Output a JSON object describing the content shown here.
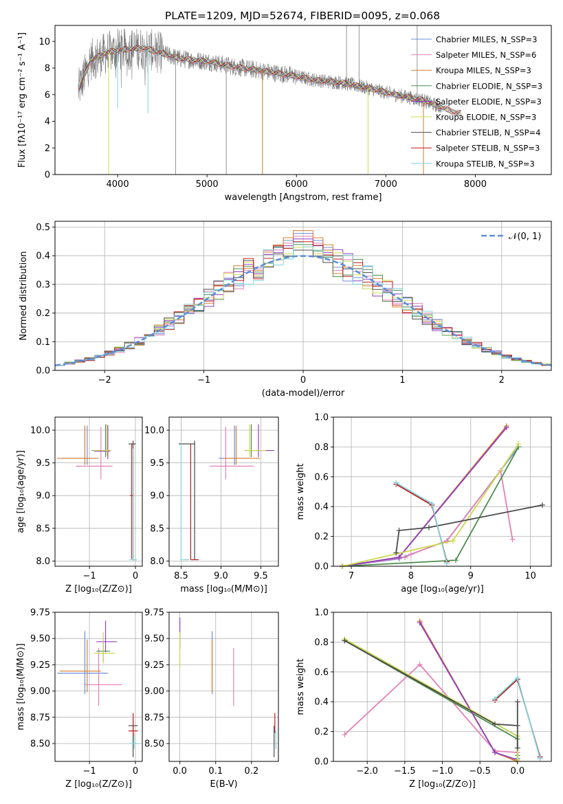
{
  "figure": {
    "title": "PLATE=1209, MJD=52674, FIBERID=0095, z=0.068"
  },
  "colors": {
    "series": [
      "#6a8fd9",
      "#e37fb6",
      "#d87c2a",
      "#4d8c4d",
      "#8f3fc0",
      "#ccd84a",
      "#4a4a4a",
      "#c01818",
      "#7fd4dc"
    ],
    "gray": "#7a7a7a",
    "normal": "#5b8fd8"
  },
  "chart_data": [
    {
      "id": "spectrum",
      "type": "line",
      "title": "PLATE=1209, MJD=52674, FIBERID=0095, z=0.068",
      "xlabel": "wavelength [Angstrom, rest frame]",
      "ylabel": "Flux [fλ10⁻¹⁷ erg cm⁻² s⁻¹ A⁻¹]",
      "xlim": [
        3300,
        8850
      ],
      "ylim": [
        0,
        11.2
      ],
      "xticks": [
        "4000",
        "5000",
        "6000",
        "7000",
        "8000"
      ],
      "yticks": [
        "0",
        "2",
        "4",
        "6",
        "8",
        "10"
      ],
      "grid": false,
      "legend_position": "top-right",
      "legend": [
        "Chabrier MILES, N_SSP=3",
        "Salpeter MILES, N_SSP=6",
        "Kroupa MILES, N_SSP=3",
        "Chabrier ELODIE, N_SSP=3",
        "Salpeter ELODIE, N_SSP=3",
        "Kroupa ELODIE, N_SSP=3",
        "Chabrier STELIB, N_SSP=4",
        "Salpeter STELIB, N_SSP=3",
        "Kroupa STELIB, N_SSP=3"
      ],
      "continuum": {
        "x": [
          3560,
          3700,
          3900,
          4100,
          4300,
          4500,
          4700,
          5000,
          5300,
          5600,
          5900,
          6200,
          6500,
          6800,
          7100,
          7400,
          7600,
          7800
        ],
        "y": [
          6.3,
          8.6,
          9.2,
          9.4,
          9.5,
          9.1,
          8.7,
          8.5,
          8.1,
          7.8,
          7.5,
          7.1,
          6.9,
          6.5,
          6.0,
          5.6,
          5.1,
          4.6
        ]
      },
      "model_dips": [
        {
          "x": 3900,
          "y": 0.0
        },
        {
          "x": 4000,
          "y": 5.0
        },
        {
          "x": 4340,
          "y": 4.6
        },
        {
          "x": 5620,
          "y": 0.0
        },
        {
          "x": 6800,
          "y": 0.0
        },
        {
          "x": 7420,
          "y": 0.0
        }
      ]
    },
    {
      "id": "residuals",
      "type": "line",
      "xlabel": "(data-model)/error",
      "ylabel": "Normed distribution",
      "xlim": [
        -2.5,
        2.5
      ],
      "ylim": [
        0,
        0.52
      ],
      "xticks": [
        "−2",
        "−1",
        "0",
        "1",
        "2"
      ],
      "yticks": [
        "0.0",
        "0.1",
        "0.2",
        "0.3",
        "0.4",
        "0.5"
      ],
      "grid": true,
      "legend_position": "top-right",
      "legend": [
        "𝒩(0, 1)"
      ],
      "normal_curve": {
        "mean": 0,
        "sigma": 1
      },
      "histogram_bin_width": 0.1,
      "histogram_peaks": [
        0.49,
        0.48,
        0.5,
        0.45,
        0.47,
        0.44,
        0.43,
        0.46,
        0.42
      ]
    },
    {
      "id": "z-age",
      "type": "scatter",
      "xlabel": "Z [log₁₀(Z/Z⊙)]",
      "ylabel": "age  [log₁₀(age/yr)]",
      "xlim": [
        -1.75,
        0.15
      ],
      "ylim": [
        7.92,
        10.2
      ],
      "xticks": [
        "−1",
        "0"
      ],
      "yticks": [
        "8.0",
        "8.5",
        "9.0",
        "9.5",
        "10.0"
      ],
      "grid": true,
      "errorbars": [
        {
          "series": 0,
          "x": -1.05,
          "y": 9.57,
          "xerr": [
            0.55,
            0.2
          ],
          "yerr": [
            0.1,
            0.5
          ]
        },
        {
          "series": 1,
          "x": -0.75,
          "y": 9.45,
          "xerr": [
            0.55,
            0.25
          ],
          "yerr": [
            0.2,
            0.6
          ]
        },
        {
          "series": 2,
          "x": -1.1,
          "y": 9.57,
          "xerr": [
            0.6,
            0.3
          ],
          "yerr": [
            0.1,
            0.5
          ]
        },
        {
          "series": 3,
          "x": -0.65,
          "y": 9.69,
          "xerr": [
            0.3,
            0.1
          ],
          "yerr": [
            0.1,
            0.4
          ]
        },
        {
          "series": 4,
          "x": -0.6,
          "y": 9.68,
          "xerr": [
            0.3,
            0.05
          ],
          "yerr": [
            0.12,
            0.4
          ]
        },
        {
          "series": 5,
          "x": -0.62,
          "y": 9.69,
          "xerr": [
            0.3,
            0.1
          ],
          "yerr": [
            0.08,
            0.4
          ]
        },
        {
          "series": 6,
          "x": -0.05,
          "y": 9.79,
          "xerr": [
            0.1,
            0.06
          ],
          "yerr": [
            1.77,
            0.05
          ]
        },
        {
          "series": 7,
          "x": -0.08,
          "y": 9.0,
          "xerr": [
            0.04,
            0.04
          ],
          "yerr": [
            0.97,
            0.8
          ]
        },
        {
          "series": 8,
          "x": -0.05,
          "y": 8.02,
          "xerr": [
            0.08,
            0.08
          ],
          "yerr": [
            0.02,
            1.7
          ]
        }
      ]
    },
    {
      "id": "mass-age",
      "type": "scatter",
      "xlabel": "mass [log₁₀(M/M⊙)]",
      "ylabel": "",
      "xlim": [
        8.35,
        9.72
      ],
      "ylim": [
        7.92,
        10.2
      ],
      "xticks": [
        "8.5",
        "9.0",
        "9.5"
      ],
      "yticks": [
        "8.0",
        "8.5",
        "9.0",
        "9.5",
        "10.0"
      ],
      "grid": true,
      "errorbars": [
        {
          "series": 0,
          "x": 9.17,
          "y": 9.57,
          "xerr": [
            0.2,
            0.2
          ],
          "yerr": [
            0.1,
            0.5
          ]
        },
        {
          "series": 1,
          "x": 9.06,
          "y": 9.45,
          "xerr": [
            0.2,
            0.35
          ],
          "yerr": [
            0.2,
            0.6
          ]
        },
        {
          "series": 2,
          "x": 9.19,
          "y": 9.57,
          "xerr": [
            0.15,
            0.3
          ],
          "yerr": [
            0.1,
            0.5
          ]
        },
        {
          "series": 3,
          "x": 9.38,
          "y": 9.69,
          "xerr": [
            0.08,
            0.08
          ],
          "yerr": [
            0.1,
            0.4
          ]
        },
        {
          "series": 4,
          "x": 9.47,
          "y": 9.69,
          "xerr": [
            0.05,
            0.2
          ],
          "yerr": [
            0.1,
            0.4
          ]
        },
        {
          "series": 5,
          "x": 9.36,
          "y": 9.69,
          "xerr": [
            0.05,
            0.2
          ],
          "yerr": [
            0.1,
            0.4
          ]
        },
        {
          "series": 6,
          "x": 8.67,
          "y": 9.79,
          "xerr": [
            0.2,
            0.0
          ],
          "yerr": [
            1.77,
            0.05
          ]
        },
        {
          "series": 7,
          "x": 8.62,
          "y": 8.02,
          "xerr": [
            0.0,
            0.1
          ],
          "yerr": [
            0.0,
            1.77
          ]
        },
        {
          "series": 8,
          "x": 8.5,
          "y": 8.02,
          "xerr": [
            0.0,
            0.1
          ],
          "yerr": [
            0.0,
            1.77
          ]
        }
      ]
    },
    {
      "id": "age-weight",
      "type": "line",
      "xlabel": "age  [log₁₀(age/yr)]",
      "ylabel": "mass weight",
      "xlim": [
        6.7,
        10.35
      ],
      "ylim": [
        0,
        1.0
      ],
      "xticks": [
        "7",
        "8",
        "9",
        "10"
      ],
      "yticks": [
        "0.0",
        "0.2",
        "0.4",
        "0.6",
        "0.8",
        "1.0"
      ],
      "grid": true,
      "series": [
        {
          "series": 0,
          "x": [
            6.85,
            7.8,
            8.6,
            9.8
          ],
          "y": [
            0.0,
            0.05,
            0.17,
            0.8
          ]
        },
        {
          "series": 1,
          "x": [
            6.85,
            7.9,
            8.0,
            8.6,
            9.5,
            9.7
          ],
          "y": [
            0.0,
            0.06,
            0.08,
            0.17,
            0.64,
            0.18
          ]
        },
        {
          "series": 2,
          "x": [
            6.85,
            7.8,
            9.6
          ],
          "y": [
            0.0,
            0.06,
            0.94
          ]
        },
        {
          "series": 3,
          "x": [
            6.85,
            8.75,
            9.8
          ],
          "y": [
            0.0,
            0.04,
            0.8
          ]
        },
        {
          "series": 4,
          "x": [
            6.85,
            7.8,
            9.6
          ],
          "y": [
            0.0,
            0.06,
            0.93
          ]
        },
        {
          "series": 5,
          "x": [
            6.85,
            8.7,
            9.8
          ],
          "y": [
            0.0,
            0.17,
            0.82
          ]
        },
        {
          "series": 6,
          "x": [
            7.75,
            7.8,
            8.3,
            10.2
          ],
          "y": [
            0.09,
            0.24,
            0.26,
            0.41
          ]
        },
        {
          "series": 7,
          "x": [
            7.75,
            8.35,
            8.6
          ],
          "y": [
            0.55,
            0.41,
            0.03
          ]
        },
        {
          "series": 8,
          "x": [
            7.75,
            8.35,
            8.6
          ],
          "y": [
            0.56,
            0.42,
            0.02
          ]
        }
      ]
    },
    {
      "id": "z-mass",
      "type": "scatter",
      "xlabel": "Z [log₁₀(Z/Z⊙)]",
      "ylabel": "mass [log₁₀(M/M⊙)]",
      "xlim": [
        -1.75,
        0.15
      ],
      "ylim": [
        8.33,
        9.75
      ],
      "xticks": [
        "−1",
        "0"
      ],
      "yticks": [
        "8.50",
        "8.75",
        "9.00",
        "9.25",
        "9.50",
        "9.75"
      ],
      "grid": true,
      "errorbars": [
        {
          "series": 0,
          "x": -1.1,
          "y": 9.17,
          "xerr": [
            0.6,
            0.5
          ],
          "yerr": [
            0.2,
            0.4
          ]
        },
        {
          "series": 1,
          "x": -0.8,
          "y": 9.06,
          "xerr": [
            0.3,
            0.5
          ],
          "yerr": [
            0.2,
            0.35
          ]
        },
        {
          "series": 2,
          "x": -1.05,
          "y": 9.19,
          "xerr": [
            0.6,
            0.3
          ],
          "yerr": [
            0.2,
            0.3
          ]
        },
        {
          "series": 3,
          "x": -0.7,
          "y": 9.38,
          "xerr": [
            0.15,
            0.15
          ],
          "yerr": [
            0.1,
            0.1
          ]
        },
        {
          "series": 4,
          "x": -0.65,
          "y": 9.47,
          "xerr": [
            0.2,
            0.25
          ],
          "yerr": [
            0.1,
            0.2
          ]
        },
        {
          "series": 5,
          "x": -0.7,
          "y": 9.36,
          "xerr": [
            0.2,
            0.25
          ],
          "yerr": [
            0.1,
            0.2
          ]
        },
        {
          "series": 6,
          "x": -0.05,
          "y": 8.67,
          "xerr": [
            0.1,
            0.1
          ],
          "yerr": [
            0.3,
            0.05
          ]
        },
        {
          "series": 7,
          "x": -0.05,
          "y": 8.62,
          "xerr": [
            0.1,
            0.1
          ],
          "yerr": [
            0.05,
            0.17
          ]
        },
        {
          "series": 8,
          "x": -0.03,
          "y": 8.5,
          "xerr": [
            0.1,
            0.1
          ],
          "yerr": [
            0.05,
            0.1
          ]
        }
      ]
    },
    {
      "id": "ebv-mass",
      "type": "scatter",
      "xlabel": "E(B-V)",
      "ylabel": "",
      "xlim": [
        -0.03,
        0.275
      ],
      "ylim": [
        8.33,
        9.75
      ],
      "xticks": [
        "0.0",
        "0.1",
        "0.2"
      ],
      "yticks": [
        "8.50",
        "8.75",
        "9.00",
        "9.25",
        "9.50",
        "9.75"
      ],
      "grid": true,
      "errorbars": [
        {
          "series": 4,
          "x": 0.0,
          "y": 9.5,
          "xerr": [
            0,
            0
          ],
          "yerr": [
            0.1,
            0.2
          ]
        },
        {
          "series": 5,
          "x": 0.0,
          "y": 9.36,
          "xerr": [
            0,
            0
          ],
          "yerr": [
            0.14,
            0.2
          ]
        },
        {
          "series": 0,
          "x": 0.09,
          "y": 9.17,
          "xerr": [
            0,
            0
          ],
          "yerr": [
            0.2,
            0.4
          ]
        },
        {
          "series": 2,
          "x": 0.09,
          "y": 9.19,
          "xerr": [
            0,
            0
          ],
          "yerr": [
            0.2,
            0.3
          ]
        },
        {
          "series": 1,
          "x": 0.15,
          "y": 9.06,
          "xerr": [
            0,
            0
          ],
          "yerr": [
            0.2,
            0.35
          ]
        },
        {
          "series": 7,
          "x": 0.265,
          "y": 8.66,
          "xerr": [
            0,
            0
          ],
          "yerr": [
            0.06,
            0.13
          ]
        },
        {
          "series": 6,
          "x": 0.263,
          "y": 8.55,
          "xerr": [
            0,
            0
          ],
          "yerr": [
            0.18,
            0.12
          ]
        },
        {
          "series": 8,
          "x": 0.268,
          "y": 8.5,
          "xerr": [
            0,
            0
          ],
          "yerr": [
            0.05,
            0.12
          ]
        }
      ]
    },
    {
      "id": "z-weight",
      "type": "line",
      "xlabel": "Z [log₁₀(Z/Z⊙)]",
      "ylabel": "mass weight",
      "xlim": [
        -2.45,
        0.45
      ],
      "ylim": [
        0,
        1.0
      ],
      "xticks": [
        "−2.0",
        "−1.5",
        "−1.0",
        "−0.5",
        "0.0"
      ],
      "yticks": [
        "0.0",
        "0.2",
        "0.4",
        "0.6",
        "0.8",
        "1.0"
      ],
      "grid": true,
      "series": [
        {
          "series": 0,
          "x": [
            -2.3,
            0.0,
            0.0
          ],
          "y": [
            0.81,
            0.17,
            0.02
          ]
        },
        {
          "series": 1,
          "x": [
            -2.3,
            -1.3,
            -0.3,
            0.0
          ],
          "y": [
            0.18,
            0.65,
            0.07,
            0.06
          ]
        },
        {
          "series": 2,
          "x": [
            -1.3,
            -0.3,
            0.0
          ],
          "y": [
            0.94,
            0.06,
            0.0
          ]
        },
        {
          "series": 3,
          "x": [
            -2.3,
            0.0,
            0.0
          ],
          "y": [
            0.81,
            0.15,
            0.04
          ]
        },
        {
          "series": 4,
          "x": [
            -1.3,
            -0.3,
            0.0
          ],
          "y": [
            0.93,
            0.06,
            0.01
          ]
        },
        {
          "series": 5,
          "x": [
            -2.3,
            0.0,
            0.0
          ],
          "y": [
            0.82,
            0.17,
            0.01
          ]
        },
        {
          "series": 6,
          "x": [
            -2.3,
            -0.3,
            0.0,
            0.0,
            0.0
          ],
          "y": [
            0.81,
            0.25,
            0.24,
            0.4,
            0.09
          ]
        },
        {
          "series": 7,
          "x": [
            -0.3,
            0.0,
            0.3
          ],
          "y": [
            0.41,
            0.55,
            0.03
          ]
        },
        {
          "series": 8,
          "x": [
            -0.3,
            0.0,
            0.3
          ],
          "y": [
            0.42,
            0.56,
            0.02
          ]
        }
      ]
    }
  ]
}
